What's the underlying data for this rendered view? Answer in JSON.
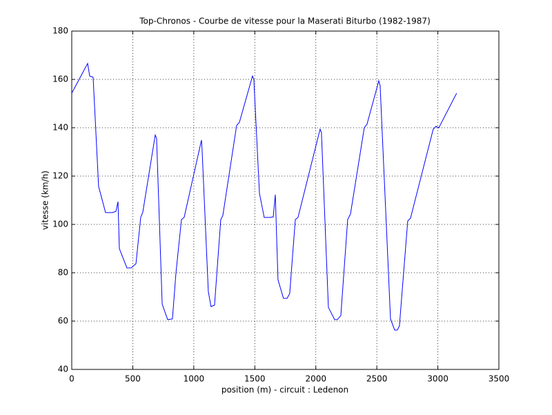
{
  "chart_data": {
    "type": "line",
    "title": "Top-Chronos - Courbe de vitesse pour la Maserati Biturbo (1982-1987)",
    "x_label": "position (m) - circuit : Ledenon",
    "y_label": "vitesse (km/h)",
    "color": "#0000ff",
    "x": [
      0,
      130,
      147,
      175,
      220,
      277,
      333,
      362,
      379,
      390,
      452,
      486,
      526,
      565,
      582,
      684,
      695,
      741,
      786,
      825,
      854,
      899,
      921,
      1063,
      1068,
      1119,
      1141,
      1170,
      1221,
      1238,
      1351,
      1374,
      1481,
      1492,
      1538,
      1577,
      1623,
      1651,
      1668,
      1690,
      1735,
      1764,
      1786,
      1832,
      1854,
      2035,
      2046,
      2103,
      2154,
      2176,
      2205,
      2261,
      2284,
      2397,
      2419,
      2516,
      2527,
      2612,
      2646,
      2668,
      2685,
      2753,
      2776,
      2962,
      2985,
      3008,
      3154
    ],
    "values": [
      154.3,
      166.6,
      161.4,
      160.9,
      115.7,
      104.9,
      104.9,
      105.4,
      109.4,
      90,
      82,
      82,
      83.7,
      102.9,
      105,
      137,
      135.7,
      67,
      60.6,
      60.9,
      80,
      102,
      102.9,
      134.9,
      130.9,
      72.3,
      66,
      66.6,
      102,
      103.7,
      140.9,
      142.3,
      161.4,
      160,
      112.9,
      102.9,
      102.9,
      103.1,
      112.3,
      77.1,
      69.4,
      69.4,
      71.4,
      102,
      102.9,
      139.4,
      138,
      65.7,
      60.6,
      60.6,
      62.3,
      102,
      104.3,
      140,
      141.4,
      159.4,
      157.4,
      60.9,
      56.3,
      56.3,
      58,
      101.4,
      102.6,
      139.4,
      140.6,
      140,
      154.3
    ],
    "xlim": [
      0,
      3500
    ],
    "xticks": [
      0,
      500,
      1000,
      1500,
      2000,
      2500,
      3000,
      3500
    ],
    "ylim": [
      40,
      180
    ],
    "yticks": [
      40,
      60,
      80,
      100,
      120,
      140,
      160,
      180
    ],
    "grid": true
  }
}
